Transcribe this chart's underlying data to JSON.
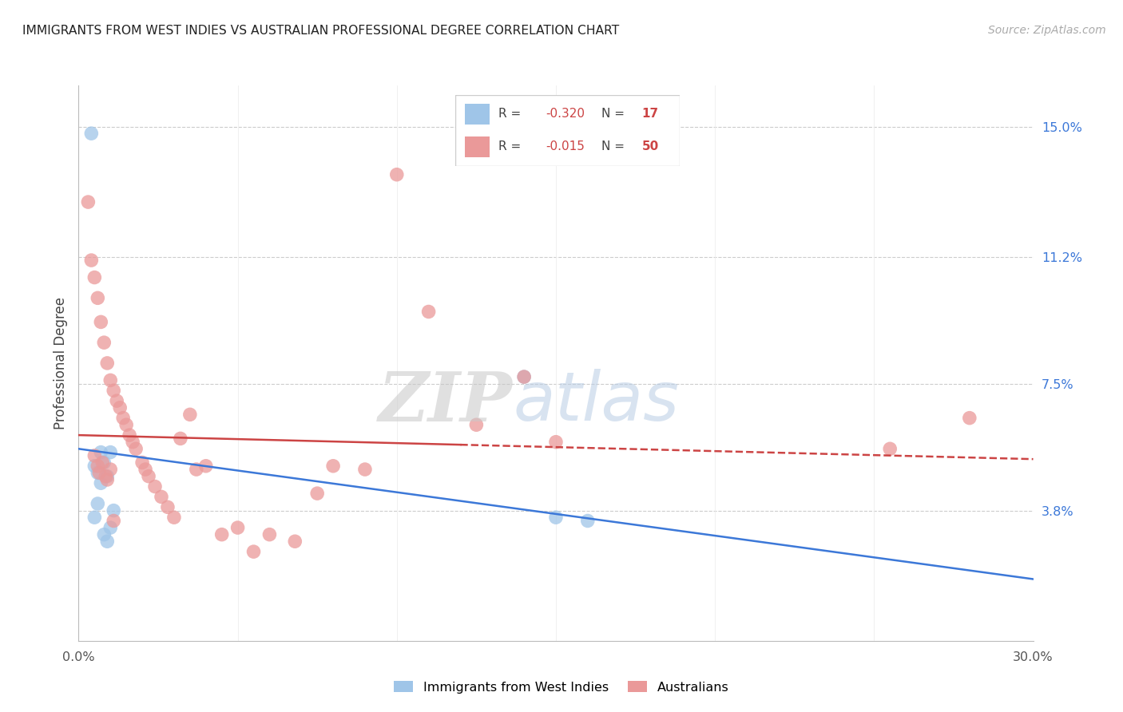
{
  "title": "IMMIGRANTS FROM WEST INDIES VS AUSTRALIAN PROFESSIONAL DEGREE CORRELATION CHART",
  "source": "Source: ZipAtlas.com",
  "ylabel": "Professional Degree",
  "right_yticks": [
    3.8,
    7.5,
    11.2,
    15.0
  ],
  "right_ytick_labels": [
    "3.8%",
    "7.5%",
    "11.2%",
    "15.0%"
  ],
  "xmin": 0.0,
  "xmax": 30.0,
  "ymin": 0.0,
  "ymax": 16.2,
  "blue_R": -0.32,
  "blue_N": 17,
  "pink_R": -0.015,
  "pink_N": 50,
  "blue_label": "Immigrants from West Indies",
  "pink_label": "Australians",
  "blue_color": "#9fc5e8",
  "pink_color": "#ea9999",
  "blue_line_color": "#3c78d8",
  "pink_line_color": "#cc4444",
  "blue_line_y0": 5.6,
  "blue_line_y1": 1.8,
  "pink_line_y0": 6.0,
  "pink_line_y1": 5.3,
  "pink_solid_x_end": 12.0,
  "blue_points_x": [
    0.4,
    0.5,
    0.6,
    0.7,
    0.8,
    0.9,
    0.9,
    1.0,
    1.0,
    1.1,
    0.5,
    0.6,
    0.7,
    0.8,
    14.0,
    15.0,
    16.0
  ],
  "blue_points_y": [
    14.8,
    5.1,
    4.9,
    5.5,
    3.1,
    2.9,
    4.8,
    3.3,
    5.5,
    3.8,
    3.6,
    4.0,
    4.6,
    5.2,
    7.7,
    3.6,
    3.5
  ],
  "pink_points_x": [
    0.3,
    0.4,
    0.5,
    0.6,
    0.7,
    0.8,
    0.9,
    1.0,
    1.1,
    1.2,
    1.3,
    1.4,
    1.5,
    1.6,
    1.7,
    1.8,
    2.0,
    2.1,
    2.2,
    2.4,
    2.6,
    2.8,
    3.0,
    3.2,
    3.5,
    3.7,
    4.0,
    4.5,
    5.0,
    5.5,
    6.0,
    6.8,
    7.5,
    8.0,
    9.0,
    10.0,
    11.0,
    12.5,
    14.0,
    15.0,
    0.5,
    0.6,
    0.65,
    0.75,
    0.85,
    0.9,
    1.0,
    1.1,
    25.5,
    28.0
  ],
  "pink_points_y": [
    12.8,
    11.1,
    10.6,
    10.0,
    9.3,
    8.7,
    8.1,
    7.6,
    7.3,
    7.0,
    6.8,
    6.5,
    6.3,
    6.0,
    5.8,
    5.6,
    5.2,
    5.0,
    4.8,
    4.5,
    4.2,
    3.9,
    3.6,
    5.9,
    6.6,
    5.0,
    5.1,
    3.1,
    3.3,
    2.6,
    3.1,
    2.9,
    4.3,
    5.1,
    5.0,
    13.6,
    9.6,
    6.3,
    7.7,
    5.8,
    5.4,
    5.1,
    4.9,
    5.2,
    4.8,
    4.7,
    5.0,
    3.5,
    5.6,
    6.5
  ]
}
